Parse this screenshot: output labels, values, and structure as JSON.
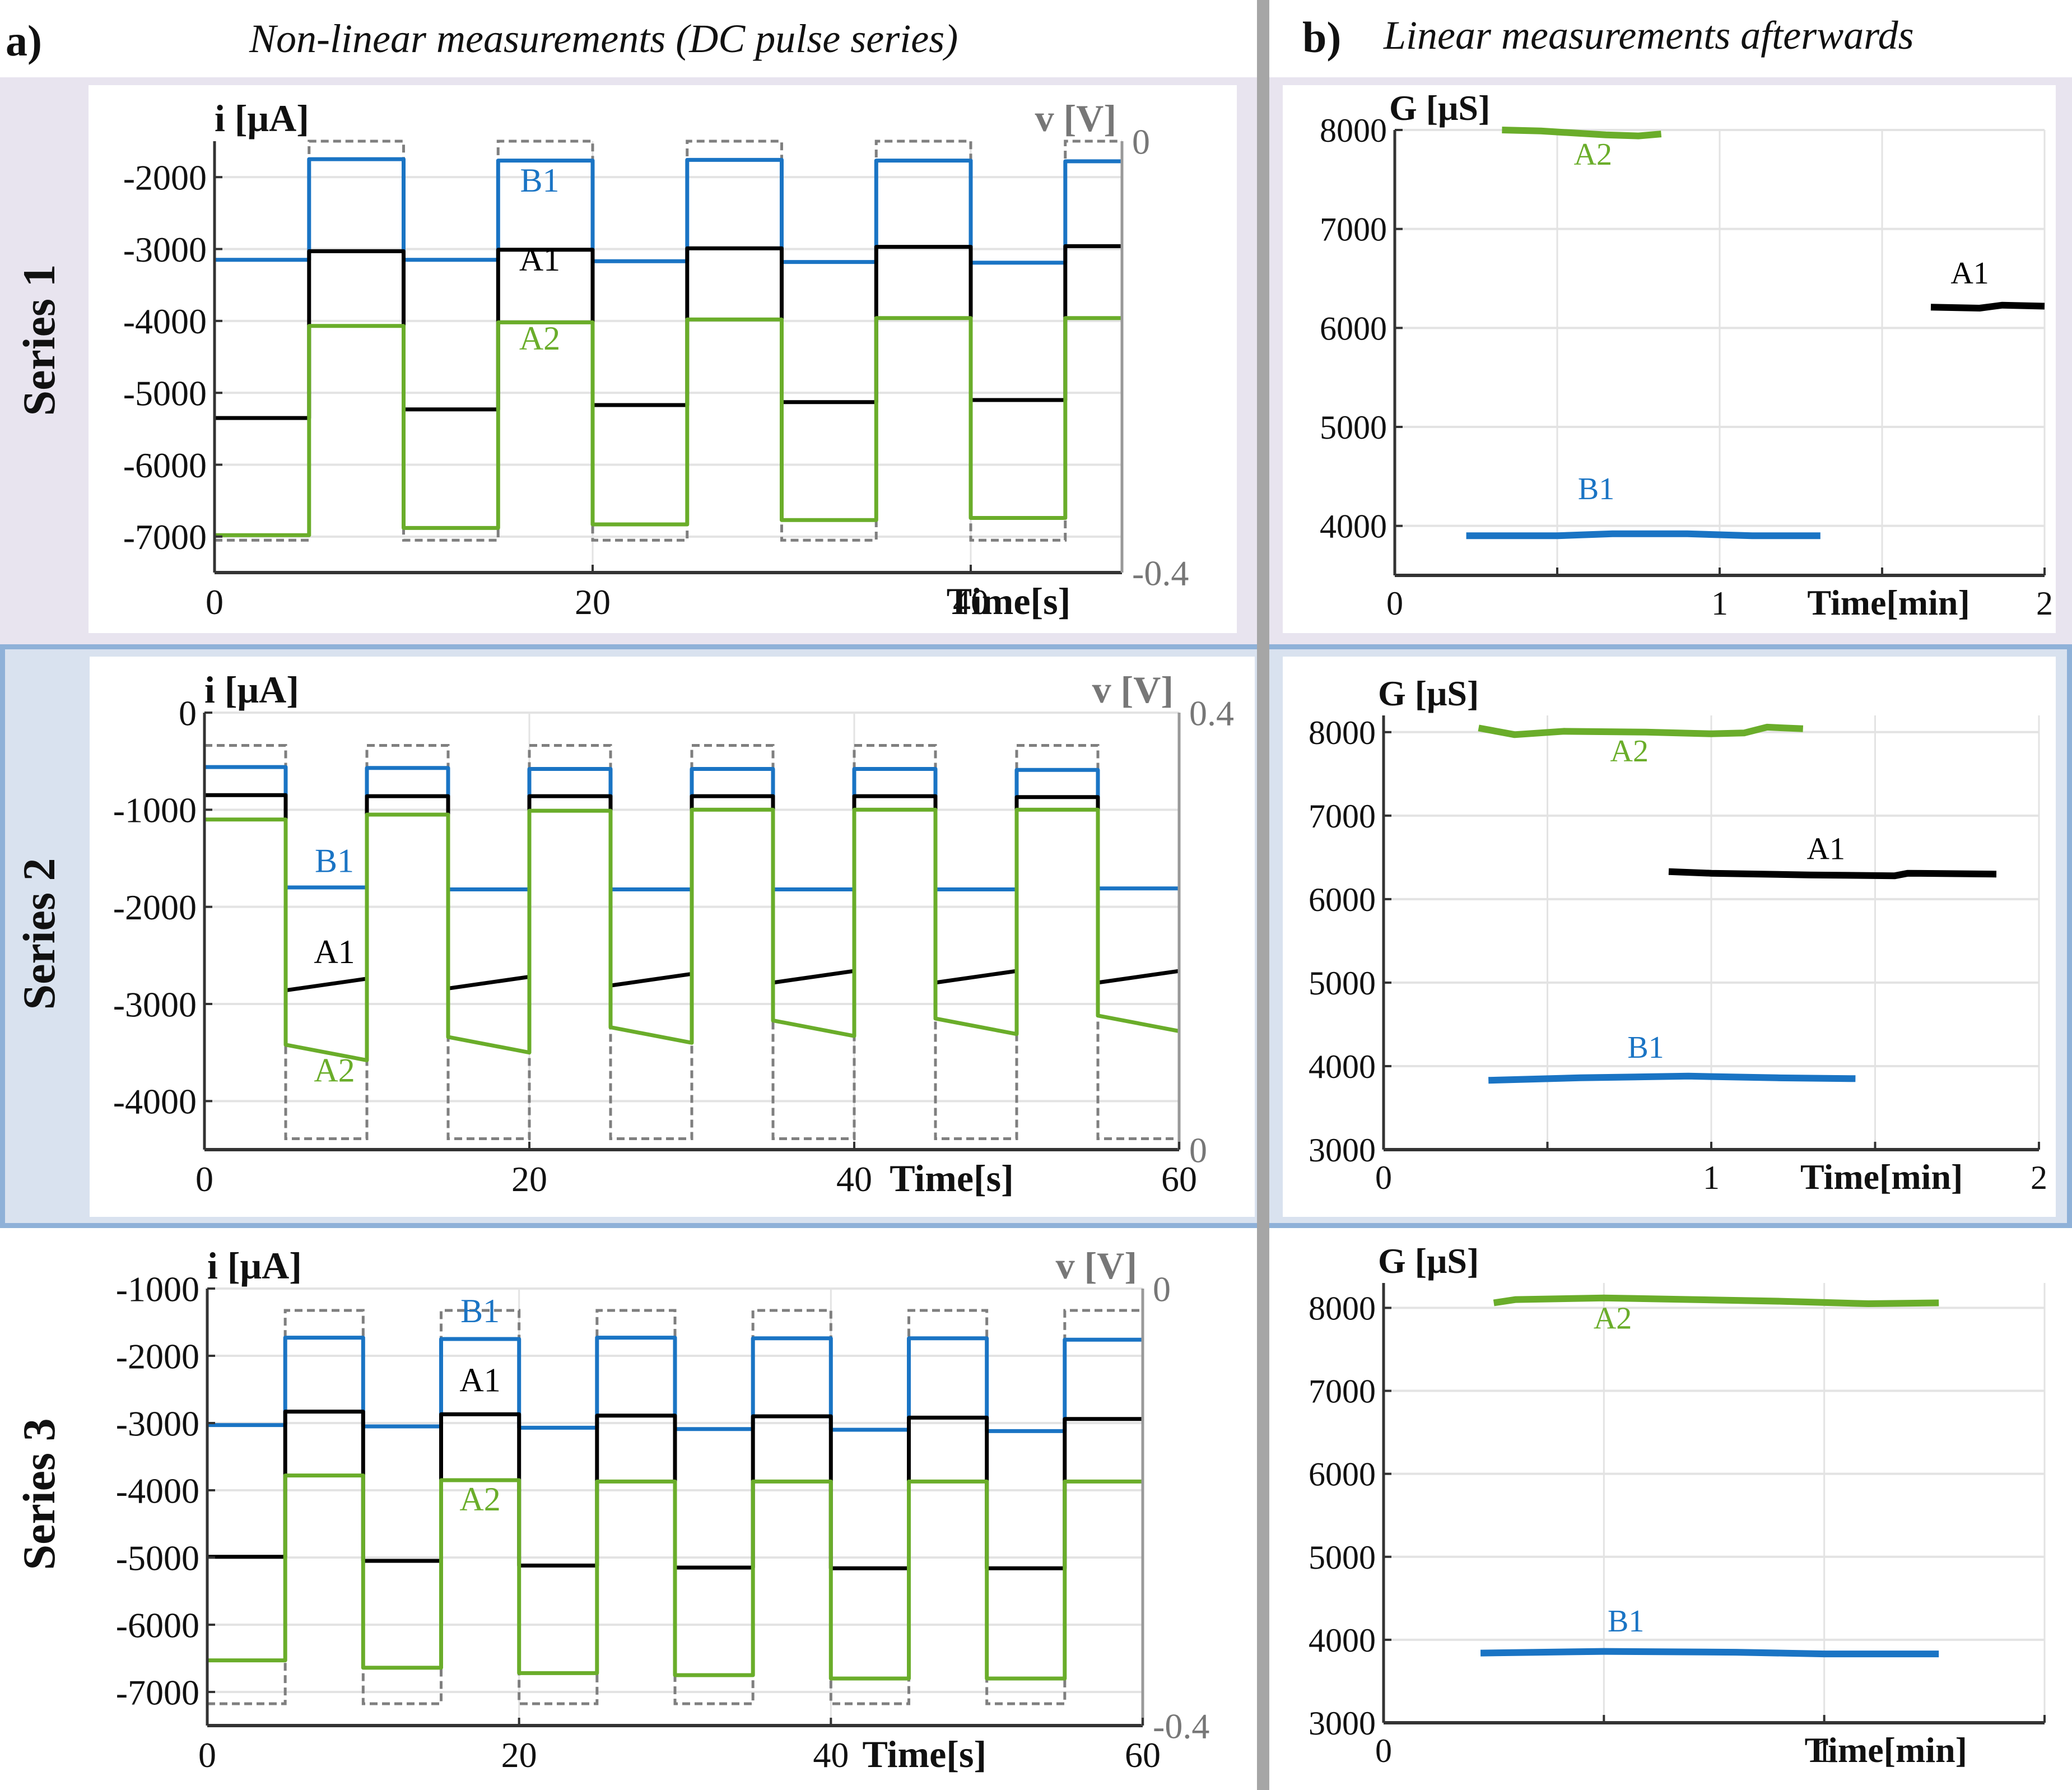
{
  "header": {
    "left_letter": "a)",
    "left_title": "Non-linear measurements (DC pulse series)",
    "right_letter": "b)",
    "right_title": "Linear measurements afterwards"
  },
  "rows": [
    {
      "label": "Series 1"
    },
    {
      "label": "Series 2"
    },
    {
      "label": "Series 3"
    }
  ],
  "colors": {
    "A1": "#000000",
    "A2": "#6aad2a",
    "B1": "#1a74c4",
    "voltage": "#7f7f7f",
    "grid": "#e3e3e3",
    "row1_bg": "#e8e4ef",
    "row2_bg": "#d9e2ef",
    "row2_border": "#8fb1d8",
    "divider": "#a6a6a6"
  },
  "chart_data": [
    {
      "id": "s1-current",
      "type": "line",
      "title": "Series 1 - Non-linear measurements (DC pulse series)",
      "ylabel": "i [μA]",
      "y2label": "v [V]",
      "xlabel": "Time[s]",
      "xlim": [
        0,
        48
      ],
      "ylim": [
        -7500,
        -1500
      ],
      "y2lim": [
        -0.4,
        0
      ],
      "xticks": [
        0,
        20,
        40
      ],
      "yticks": [
        -7000,
        -6000,
        -5000,
        -4000,
        -3000,
        -2000
      ],
      "y2ticks": [
        -0.4,
        0
      ],
      "y2tick_labels": [
        "-0.4",
        "0"
      ],
      "grid": true,
      "pulse_period_s": 10,
      "pulse_on_s": 5,
      "voltage_levels": {
        "high": 0,
        "low": -0.37
      },
      "voltage_phase": "low-first",
      "series": [
        {
          "name": "B1",
          "low_levels": [
            -3150,
            -3150,
            -3170,
            -3180,
            -3190
          ],
          "high_levels": [
            -1750,
            -1770,
            -1760,
            -1770,
            -1780
          ]
        },
        {
          "name": "A1",
          "low_levels": [
            -5350,
            -5230,
            -5170,
            -5130,
            -5100
          ],
          "high_levels": [
            -3030,
            -3010,
            -2990,
            -2970,
            -2960
          ]
        },
        {
          "name": "A2",
          "low_levels": [
            -6980,
            -6880,
            -6830,
            -6770,
            -6740
          ],
          "high_levels": [
            -4070,
            -4020,
            -3980,
            -3960,
            -3960
          ]
        }
      ],
      "annotations": [
        {
          "text": "B1",
          "x": 17.2,
          "y": -2200,
          "series": "B1"
        },
        {
          "text": "A1",
          "x": 17.2,
          "y": -3300,
          "series": "A1"
        },
        {
          "text": "A2",
          "x": 17.2,
          "y": -4400,
          "series": "A2"
        }
      ]
    },
    {
      "id": "s1-conductance",
      "type": "line",
      "title": "Series 1 - Linear measurements afterwards",
      "ylabel": "G [μS]",
      "xlabel": "Time[min]",
      "xlim": [
        0,
        2
      ],
      "ylim": [
        3500,
        8000
      ],
      "xticks": [
        0,
        0.5,
        1,
        1.5,
        2
      ],
      "xtick_labels": [
        "0",
        "",
        "1",
        "",
        "2"
      ],
      "yticks": [
        4000,
        5000,
        6000,
        7000,
        8000
      ],
      "grid": true,
      "series": [
        {
          "name": "A2",
          "x": [
            0.33,
            0.45,
            0.55,
            0.65,
            0.75,
            0.82
          ],
          "y": [
            8000,
            7990,
            7970,
            7950,
            7940,
            7960
          ]
        },
        {
          "name": "B1",
          "x": [
            0.22,
            0.5,
            0.67,
            0.9,
            1.1,
            1.31
          ],
          "y": [
            3900,
            3900,
            3920,
            3920,
            3900,
            3900
          ]
        },
        {
          "name": "A1",
          "x": [
            1.65,
            1.8,
            1.87,
            2.0
          ],
          "y": [
            6210,
            6200,
            6230,
            6220
          ]
        }
      ],
      "annotations": [
        {
          "text": "A2",
          "x": 0.61,
          "y": 7650,
          "series": "A2"
        },
        {
          "text": "B1",
          "x": 0.62,
          "y": 4270,
          "series": "B1"
        },
        {
          "text": "A1",
          "x": 1.77,
          "y": 6450,
          "series": "A1"
        }
      ]
    },
    {
      "id": "s2-current",
      "type": "line",
      "title": "Series 2 - Non-linear measurements (DC pulse series)",
      "ylabel": "i [μA]",
      "y2label": "v [V]",
      "xlabel": "Time[s]",
      "xlim": [
        0,
        60
      ],
      "ylim": [
        -4500,
        0
      ],
      "y2lim": [
        0,
        0.4
      ],
      "xticks": [
        0,
        20,
        40,
        60
      ],
      "yticks": [
        -4000,
        -3000,
        -2000,
        -1000,
        0
      ],
      "y2ticks": [
        0,
        0.4
      ],
      "y2tick_labels": [
        "0",
        "0.4"
      ],
      "grid": true,
      "pulse_period_s": 10,
      "pulse_on_s": 5,
      "voltage_levels": {
        "high": 0.37,
        "low": 0.01
      },
      "voltage_phase": "high-first",
      "series": [
        {
          "name": "B1",
          "high_levels": [
            -560,
            -570,
            -580,
            -580,
            -580,
            -590
          ],
          "low_levels": [
            -1800,
            -1820,
            -1820,
            -1820,
            -1820,
            -1810
          ]
        },
        {
          "name": "A1",
          "high_levels": [
            -850,
            -860,
            -860,
            -860,
            -860,
            -870
          ],
          "low_levels": [
            -2800,
            -2780,
            -2750,
            -2720,
            -2720,
            -2720
          ],
          "low_slope": 60
        },
        {
          "name": "A2",
          "high_levels": [
            -1100,
            -1050,
            -1010,
            -1000,
            -1000,
            -1000
          ],
          "low_levels": [
            -3500,
            -3420,
            -3320,
            -3250,
            -3230,
            -3200
          ],
          "low_slope": -80
        }
      ],
      "annotations": [
        {
          "text": "B1",
          "x": 8,
          "y": -1640,
          "series": "B1"
        },
        {
          "text": "A1",
          "x": 8,
          "y": -2580,
          "series": "A1"
        },
        {
          "text": "A2",
          "x": 8,
          "y": -3800,
          "series": "A2"
        }
      ]
    },
    {
      "id": "s2-conductance",
      "type": "line",
      "title": "Series 2 - Linear measurements afterwards",
      "ylabel": "G [μS]",
      "xlabel": "Time[min]",
      "xlim": [
        0,
        2
      ],
      "ylim": [
        3000,
        8200
      ],
      "xticks": [
        0,
        0.5,
        1,
        1.5,
        2
      ],
      "xtick_labels": [
        "0",
        "",
        "1",
        "",
        "2"
      ],
      "yticks": [
        3000,
        4000,
        5000,
        6000,
        7000,
        8000
      ],
      "grid": true,
      "series": [
        {
          "name": "A2",
          "x": [
            0.29,
            0.4,
            0.55,
            0.8,
            1.0,
            1.1,
            1.17,
            1.28
          ],
          "y": [
            8050,
            7970,
            8010,
            8000,
            7980,
            7990,
            8060,
            8040
          ]
        },
        {
          "name": "A1",
          "x": [
            0.87,
            1.0,
            1.3,
            1.56,
            1.6,
            1.87
          ],
          "y": [
            6330,
            6310,
            6290,
            6280,
            6310,
            6300
          ]
        },
        {
          "name": "B1",
          "x": [
            0.32,
            0.6,
            0.93,
            1.2,
            1.44
          ],
          "y": [
            3830,
            3860,
            3880,
            3860,
            3850
          ]
        }
      ],
      "annotations": [
        {
          "text": "A2",
          "x": 0.75,
          "y": 7650,
          "series": "A2"
        },
        {
          "text": "A1",
          "x": 1.35,
          "y": 6480,
          "series": "A1"
        },
        {
          "text": "B1",
          "x": 0.8,
          "y": 4100,
          "series": "B1"
        }
      ]
    },
    {
      "id": "s3-current",
      "type": "line",
      "title": "Series 3 - Non-linear measurements (DC pulse series)",
      "ylabel": "i [μA]",
      "y2label": "v [V]",
      "xlabel": "Time[s]",
      "xlim": [
        0,
        60
      ],
      "ylim": [
        -7500,
        -1000
      ],
      "y2lim": [
        -0.4,
        0
      ],
      "xticks": [
        0,
        20,
        40,
        60
      ],
      "yticks": [
        -7000,
        -6000,
        -5000,
        -4000,
        -3000,
        -2000,
        -1000
      ],
      "y2ticks": [
        -0.4,
        0
      ],
      "y2tick_labels": [
        "-0.4",
        "0"
      ],
      "grid": true,
      "pulse_period_s": 10,
      "pulse_on_s": 5,
      "voltage_levels": {
        "high": -0.02,
        "low": -0.38
      },
      "voltage_phase": "low-first",
      "series": [
        {
          "name": "B1",
          "low_levels": [
            -3030,
            -3050,
            -3070,
            -3090,
            -3100,
            -3120
          ],
          "high_levels": [
            -1730,
            -1750,
            -1730,
            -1740,
            -1740,
            -1760
          ]
        },
        {
          "name": "A1",
          "low_levels": [
            -4990,
            -5050,
            -5120,
            -5150,
            -5160,
            -5160
          ],
          "high_levels": [
            -2830,
            -2870,
            -2890,
            -2900,
            -2920,
            -2940
          ]
        },
        {
          "name": "A2",
          "low_levels": [
            -6530,
            -6640,
            -6720,
            -6750,
            -6800,
            -6800
          ],
          "high_levels": [
            -3780,
            -3850,
            -3870,
            -3870,
            -3870,
            -3870
          ]
        }
      ],
      "annotations": [
        {
          "text": "B1",
          "x": 17.5,
          "y": -1500,
          "series": "B1"
        },
        {
          "text": "A1",
          "x": 17.5,
          "y": -2530,
          "series": "A1"
        },
        {
          "text": "A2",
          "x": 17.5,
          "y": -4300,
          "series": "A2"
        }
      ]
    },
    {
      "id": "s3-conductance",
      "type": "line",
      "title": "Series 3 - Linear measurements afterwards",
      "ylabel": "G [μS]",
      "xlabel": "Time[min]",
      "xlim": [
        0,
        1.5
      ],
      "ylim": [
        3000,
        8300
      ],
      "xticks": [
        0,
        0.5,
        1,
        1.5
      ],
      "xtick_labels": [
        "0",
        "",
        "1",
        ""
      ],
      "yticks": [
        3000,
        4000,
        5000,
        6000,
        7000,
        8000
      ],
      "grid": true,
      "series": [
        {
          "name": "A2",
          "x": [
            0.25,
            0.3,
            0.5,
            0.7,
            0.9,
            1.1,
            1.26
          ],
          "y": [
            8060,
            8100,
            8120,
            8100,
            8080,
            8050,
            8060
          ]
        },
        {
          "name": "B1",
          "x": [
            0.22,
            0.5,
            0.8,
            1.0,
            1.26
          ],
          "y": [
            3840,
            3860,
            3850,
            3830,
            3830
          ]
        }
      ],
      "annotations": [
        {
          "text": "A2",
          "x": 0.52,
          "y": 7750,
          "series": "A2"
        },
        {
          "text": "B1",
          "x": 0.55,
          "y": 4100,
          "series": "B1"
        }
      ]
    }
  ]
}
